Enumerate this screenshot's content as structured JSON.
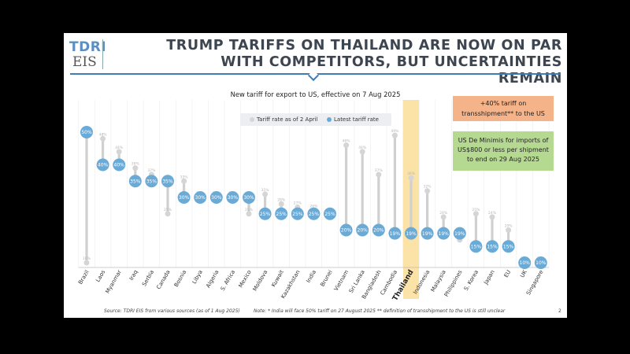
{
  "slide": {
    "logo_top": "TDRI",
    "logo_bottom": "EIS",
    "headline_line1": "TRUMP TARIFFS ON THAILAND ARE NOW ON PAR",
    "headline_line2": "WITH COMPETITORS, BUT UNCERTAINTIES REMAIN",
    "source": "Source: TDRI EIS from various sources (as of 1 Aug 2025)",
    "note": "Note: * India will face 50% tariff on 27 August 2025   ** definition of transshipment to the US is still unclear",
    "page_number": "2"
  },
  "callouts": {
    "orange_line1": "+40%  tariff on",
    "orange_line2": "transshipment** to the US",
    "green_line1": "US De Minimis for imports of",
    "green_line2": "US$800 or less per shipment",
    "green_line3": "to end on 29 Aug 2025"
  },
  "colors": {
    "latest": "#6aaad6",
    "april": "#d5d5d5",
    "highlight": "#fbe3a7",
    "headline": "#3d4550",
    "accent": "#3e7eb5"
  },
  "chart_data": {
    "type": "scatter",
    "title": "New tariff for export to US, effective on 7 Aug 2025",
    "legend_position": "top-center",
    "categories": [
      "Brazil",
      "Laos",
      "Myanmar",
      "Iraq",
      "Serbia",
      "Canada",
      "Bosnia",
      "Libya",
      "Algeria",
      "S. Africa",
      "Mexico",
      "Moldova",
      "Kuwait",
      "Kazakhstan",
      "India",
      "Brunei",
      "Vietnam",
      "Sri Lanka",
      "Bangladesh",
      "Cambodia",
      "Thailand",
      "Indonesia",
      "Malaysia",
      "Philippines",
      "S. Korea",
      "Japan",
      "EU",
      "UK",
      "Singapore"
    ],
    "highlight_category": "Thailand",
    "series": [
      {
        "name": "Tariff rate as of 2 April",
        "values": [
          10,
          48,
          44,
          39,
          37,
          25,
          35,
          30,
          30,
          30,
          25,
          31,
          28,
          27,
          26,
          24,
          46,
          44,
          37,
          49,
          36,
          32,
          24,
          17,
          25,
          24,
          20,
          10,
          10
        ],
        "labels": [
          "10%",
          "48%",
          "44%",
          "39%",
          "37%",
          "25%",
          "35%",
          "30%",
          "30%",
          "30%",
          "25%",
          "31%",
          "28%",
          "27%",
          "26%",
          "24%",
          "46%",
          "44%",
          "37%",
          "49%",
          "36%",
          "32%",
          "24%",
          "17%",
          "25%",
          "24%",
          "20%",
          "10%",
          "10%"
        ]
      },
      {
        "name": "Latest tariff rate",
        "values": [
          50,
          40,
          40,
          35,
          35,
          35,
          30,
          30,
          30,
          30,
          30,
          25,
          25,
          25,
          25,
          25,
          20,
          20,
          20,
          19,
          19,
          19,
          19,
          19,
          15,
          15,
          15,
          10,
          10
        ],
        "labels": [
          "50%",
          "40%",
          "40%",
          "35%",
          "35%",
          "35%",
          "30%",
          "30%",
          "30%",
          "30%",
          "30%",
          "25%",
          "25%",
          "25%",
          "25%",
          "25%",
          "20%",
          "20%",
          "20%",
          "19%",
          "19%",
          "19%",
          "19%",
          "19%",
          "15%",
          "15%",
          "15%",
          "10%",
          "10%"
        ]
      }
    ],
    "ylim": [
      0,
      55
    ],
    "grid": "vertical"
  }
}
